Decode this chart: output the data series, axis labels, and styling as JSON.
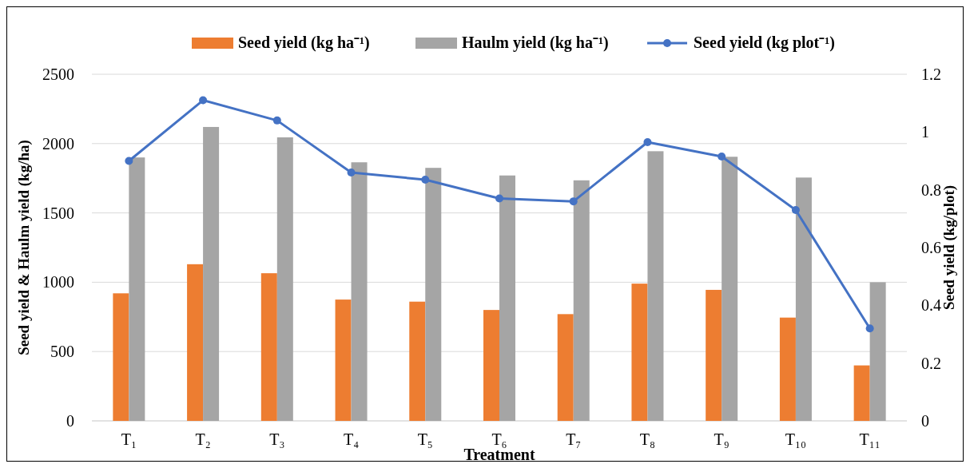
{
  "chart_data": {
    "type": "bar",
    "xlabel": "Treatment",
    "ylabel": "Seed yield & Haulm yield (kg/ha)",
    "y2label": "Seed yield (kg/plot)",
    "categories": [
      "T₁",
      "T₂",
      "T₃",
      "T₄",
      "T₅",
      "T₆",
      "T₇",
      "T₈",
      "T₉",
      "T₁₀",
      "T₁₁"
    ],
    "series": [
      {
        "name": "Seed yield (kg ha⁻¹)",
        "color": "#ed7d31",
        "values": [
          920,
          1130,
          1065,
          875,
          860,
          800,
          770,
          990,
          945,
          745,
          400
        ]
      },
      {
        "name": "Haulm yield (kg ha⁻¹)",
        "color": "#a5a5a5",
        "values": [
          1900,
          2120,
          2045,
          1865,
          1825,
          1770,
          1735,
          1945,
          1905,
          1755,
          1000
        ]
      },
      {
        "name": "Seed yield (kg plot⁻¹)",
        "type": "line",
        "axis": "y2",
        "color": "#4472c4",
        "marker": "circle",
        "values": [
          0.9,
          1.11,
          1.04,
          0.86,
          0.835,
          0.77,
          0.76,
          0.965,
          0.915,
          0.73,
          0.32
        ]
      }
    ],
    "ylim": [
      0,
      2500
    ],
    "yticks": [
      0,
      500,
      1000,
      1500,
      2000,
      2500
    ],
    "y2lim": [
      0,
      1.2
    ],
    "y2ticks": [
      0,
      0.2,
      0.4,
      0.6,
      0.8,
      1,
      1.2
    ],
    "grid": "y",
    "legend": "top"
  }
}
